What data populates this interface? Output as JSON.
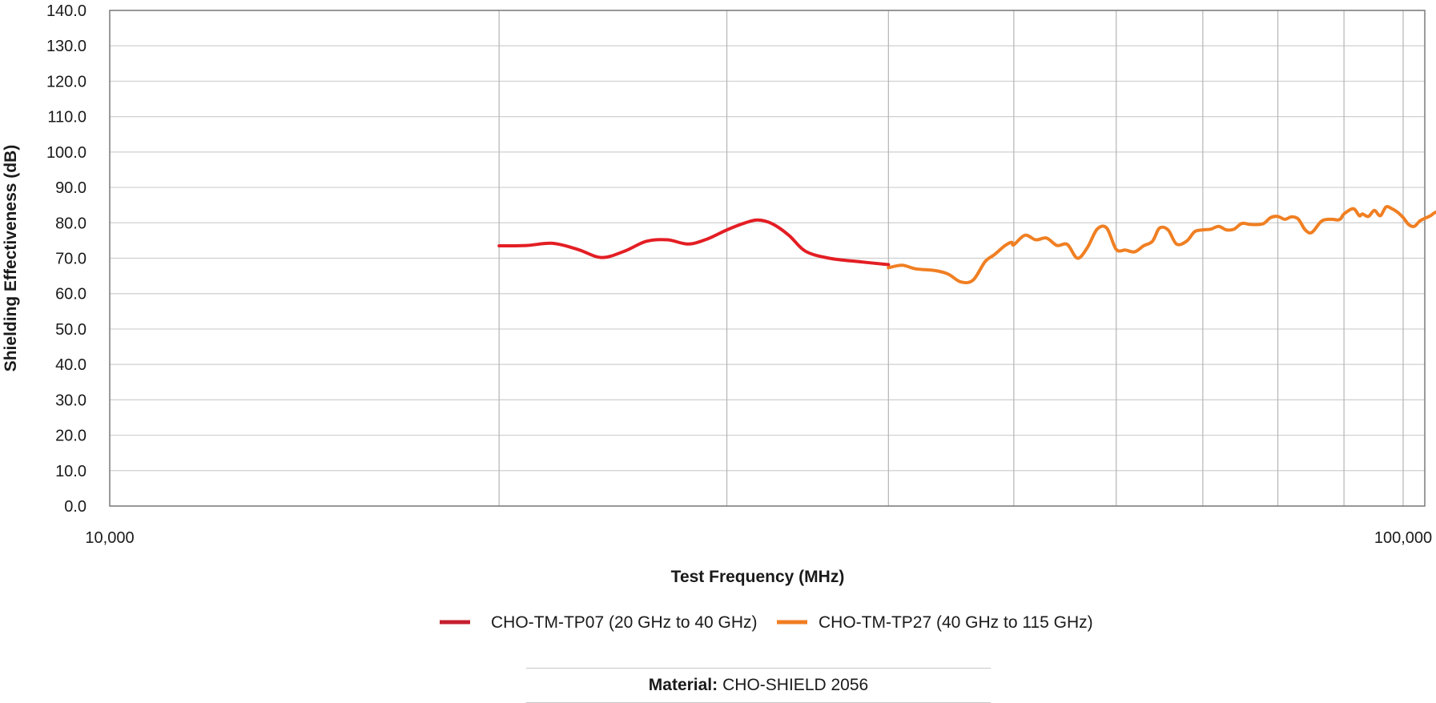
{
  "chart_data": {
    "type": "line",
    "xlabel": "Test Frequency (MHz)",
    "ylabel": "Shielding Effectiveness (dB)",
    "xscale": "log",
    "xlim": [
      10000,
      115000
    ],
    "ylim": [
      0,
      140
    ],
    "x_tick_labels": [
      {
        "value": 10000,
        "label": "10,000"
      },
      {
        "value": 100000,
        "label": "100,000"
      }
    ],
    "x_gridlines": [
      20000,
      30000,
      40000,
      50000,
      60000,
      70000,
      80000,
      90000,
      100000
    ],
    "y_ticks": [
      0,
      10,
      20,
      30,
      40,
      50,
      60,
      70,
      80,
      90,
      100,
      110,
      120,
      130,
      140
    ],
    "y_tick_labels": [
      "0.0",
      "10.0",
      "20.0",
      "30.0",
      "40.0",
      "50.0",
      "60.0",
      "70.0",
      "80.0",
      "90.0",
      "100.0",
      "110.0",
      "120.0",
      "130.0",
      "140.0"
    ],
    "grid": true,
    "legend_position": "bottom-center",
    "series": [
      {
        "name": "CHO-TM-TP07 (20 GHz to 40 GHz)",
        "color": "#e31e24",
        "legend_color": "#c41f2f",
        "x": [
          20000,
          21000,
          22000,
          23000,
          24000,
          25000,
          26000,
          27000,
          28000,
          29000,
          30000,
          31000,
          31700,
          32500,
          33500,
          34500,
          36000,
          38000,
          40000
        ],
        "y": [
          73.5,
          73.6,
          74.2,
          72.5,
          70.2,
          72.0,
          74.8,
          75.2,
          74.0,
          75.5,
          78.0,
          80.0,
          80.8,
          79.8,
          76.5,
          72.0,
          70.0,
          69.0,
          68.2
        ]
      },
      {
        "name": "CHO-TM-TP27 (40 GHz to 115 GHz)",
        "color": "#f07f22",
        "legend_color": "#ef7d22",
        "x": [
          40000,
          41000,
          42000,
          43500,
          44500,
          45500,
          46500,
          47500,
          48300,
          49200,
          49800,
          50000,
          51000,
          52000,
          53000,
          54000,
          55000,
          56000,
          57000,
          58000,
          59000,
          60000,
          61000,
          62000,
          63000,
          64000,
          64800,
          65800,
          66800,
          68000,
          69000,
          70000,
          71000,
          72000,
          73000,
          74000,
          75000,
          76000,
          77000,
          78000,
          79000,
          80000,
          81000,
          82000,
          83000,
          84000,
          85000,
          86500,
          88000,
          89000,
          89500,
          90000,
          91500,
          92500,
          93000,
          94000,
          95000,
          96000,
          97000,
          98000,
          99000,
          100000,
          101000,
          102000,
          103000,
          104000,
          105000,
          106000,
          107000,
          108000,
          109000,
          110000,
          112000,
          115000
        ],
        "y": [
          67.3,
          68.0,
          67.0,
          66.5,
          65.5,
          63.3,
          63.8,
          69.0,
          71.0,
          73.5,
          74.5,
          73.8,
          76.5,
          75.2,
          75.7,
          73.6,
          73.9,
          70.0,
          73.0,
          78.2,
          78.5,
          72.5,
          72.3,
          71.8,
          73.5,
          74.8,
          78.5,
          78.0,
          74.0,
          74.8,
          77.5,
          78.0,
          78.2,
          79.0,
          78.0,
          78.2,
          79.8,
          79.6,
          79.5,
          79.8,
          81.5,
          81.8,
          81.0,
          81.7,
          81.0,
          78.0,
          77.3,
          80.5,
          81.0,
          80.8,
          81.2,
          82.5,
          84.0,
          82.0,
          82.5,
          81.8,
          83.5,
          82.0,
          84.5,
          84.0,
          83.0,
          81.5,
          79.5,
          79.0,
          80.5,
          81.3,
          82.0,
          83.0,
          82.5,
          83.2,
          83.0,
          82.8,
          83.0,
          83.5
        ]
      }
    ]
  },
  "material": {
    "label": "Material:",
    "value": "CHO-SHIELD 2056"
  }
}
